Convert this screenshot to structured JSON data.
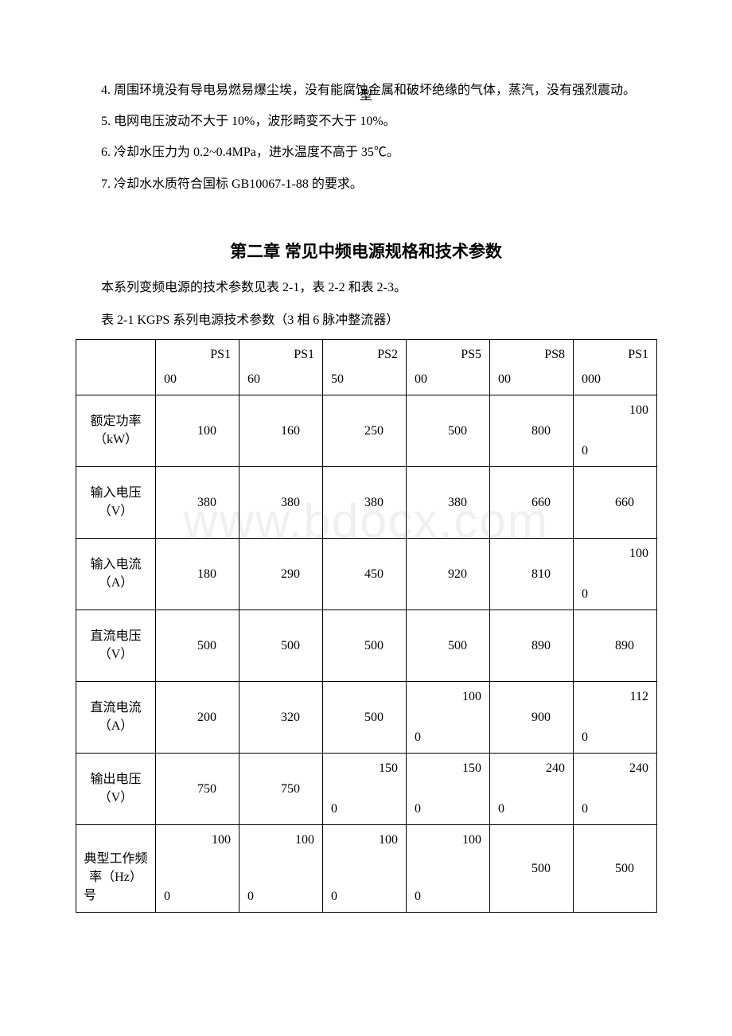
{
  "watermark": "www.bdocx.com",
  "paragraphs": {
    "p4": "4. 周围环境没有导电易燃易爆尘埃，没有能腐蚀金属和破坏绝缘的气体，蒸汽，没有强烈震动。",
    "p5": "5. 电网电压波动不大于 10%，波形畸变不大于 10%。",
    "p6": "6. 冷却水压力为 0.2~0.4MPa，进水温度不高于 35℃。",
    "p7": "7. 冷却水水质符合国标 GB10067-1-88 的要求。"
  },
  "chapter": "第二章 常见中频电源规格和技术参数",
  "intro": "本系列变频电源的技术参数见表 2-1，表 2-2 和表 2-3。",
  "caption": "表 2-1 KGPS 系列电源技术参数（3 相 6 脉冲整流器）",
  "table": {
    "header_label": {
      "top": "型",
      "bot": "号"
    },
    "headers": [
      {
        "top": "PS1",
        "bot": "00"
      },
      {
        "top": "PS1",
        "bot": "60"
      },
      {
        "top": "PS2",
        "bot": "50"
      },
      {
        "top": "PS5",
        "bot": "00"
      },
      {
        "top": "PS8",
        "bot": "00"
      },
      {
        "top": "PS1",
        "bot": "000"
      }
    ],
    "rows": [
      {
        "param": "额定功率（kW）",
        "cells": [
          {
            "type": "single",
            "v": "100"
          },
          {
            "type": "single",
            "v": "160"
          },
          {
            "type": "single",
            "v": "250"
          },
          {
            "type": "single",
            "v": "500"
          },
          {
            "type": "single",
            "v": "800"
          },
          {
            "type": "split",
            "top": "100",
            "bot": "0"
          }
        ]
      },
      {
        "param": "输入电压（V）",
        "cells": [
          {
            "type": "single",
            "v": "380"
          },
          {
            "type": "single",
            "v": "380"
          },
          {
            "type": "single",
            "v": "380"
          },
          {
            "type": "single",
            "v": "380"
          },
          {
            "type": "single",
            "v": "660"
          },
          {
            "type": "single",
            "v": "660"
          }
        ]
      },
      {
        "param": "输入电流（A）",
        "cells": [
          {
            "type": "single",
            "v": "180"
          },
          {
            "type": "single",
            "v": "290"
          },
          {
            "type": "single",
            "v": "450"
          },
          {
            "type": "single",
            "v": "920"
          },
          {
            "type": "single",
            "v": "810"
          },
          {
            "type": "split",
            "top": "100",
            "bot": "0"
          }
        ]
      },
      {
        "param": "直流电压（V）",
        "cells": [
          {
            "type": "single",
            "v": "500"
          },
          {
            "type": "single",
            "v": "500"
          },
          {
            "type": "single",
            "v": "500"
          },
          {
            "type": "single",
            "v": "500"
          },
          {
            "type": "single",
            "v": "890"
          },
          {
            "type": "single",
            "v": "890"
          }
        ]
      },
      {
        "param": "直流电流（A）",
        "cells": [
          {
            "type": "single",
            "v": "200"
          },
          {
            "type": "single",
            "v": "320"
          },
          {
            "type": "single",
            "v": "500"
          },
          {
            "type": "split",
            "top": "100",
            "bot": "0"
          },
          {
            "type": "single",
            "v": "900"
          },
          {
            "type": "split",
            "top": "112",
            "bot": "0"
          }
        ]
      },
      {
        "param": "输出电压（V）",
        "cells": [
          {
            "type": "single",
            "v": "750"
          },
          {
            "type": "single",
            "v": "750"
          },
          {
            "type": "split",
            "top": "150",
            "bot": "0"
          },
          {
            "type": "split",
            "top": "150",
            "bot": "0"
          },
          {
            "type": "split",
            "top": "240",
            "bot": "0"
          },
          {
            "type": "split",
            "top": "240",
            "bot": "0"
          }
        ]
      },
      {
        "param": "典型工作频率（Hz）",
        "tall": true,
        "cells": [
          {
            "type": "split",
            "top": "100",
            "bot": "0"
          },
          {
            "type": "split",
            "top": "100",
            "bot": "0"
          },
          {
            "type": "split",
            "top": "100",
            "bot": "0"
          },
          {
            "type": "split",
            "top": "100",
            "bot": "0"
          },
          {
            "type": "single",
            "v": "500"
          },
          {
            "type": "single",
            "v": "500"
          }
        ]
      }
    ]
  }
}
